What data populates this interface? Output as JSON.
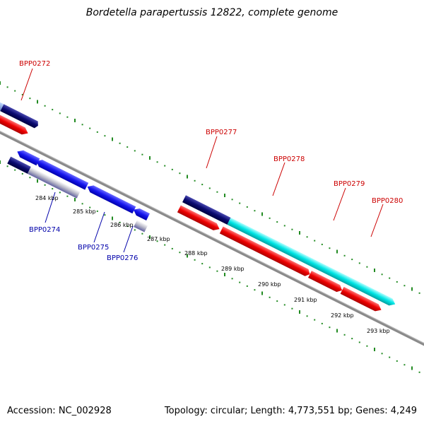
{
  "title": "Bordetella parapertussis 12822, complete genome",
  "footer": {
    "accession": "Accession: NC_002928",
    "summary": "Topology: circular; Length: 4,773,551 bp; Genes: 4,249"
  },
  "colors": {
    "forward_label": "#cc0000",
    "reverse_label": "#0000aa",
    "backbone": "#888888",
    "tick": "#228b22"
  },
  "gene_labels_forward": [
    "BPP0272",
    "BPP0277",
    "BPP0278",
    "BPP0279",
    "BPP0280"
  ],
  "gene_labels_reverse": [
    "BPP0274",
    "BPP0275",
    "BPP0276"
  ],
  "scale_labels": [
    "284 kbp",
    "285 kbp",
    "286 kbp",
    "287 kbp",
    "288 kbp",
    "289 kbp",
    "290 kbp",
    "291 kbp",
    "292 kbp",
    "293 kbp"
  ]
}
